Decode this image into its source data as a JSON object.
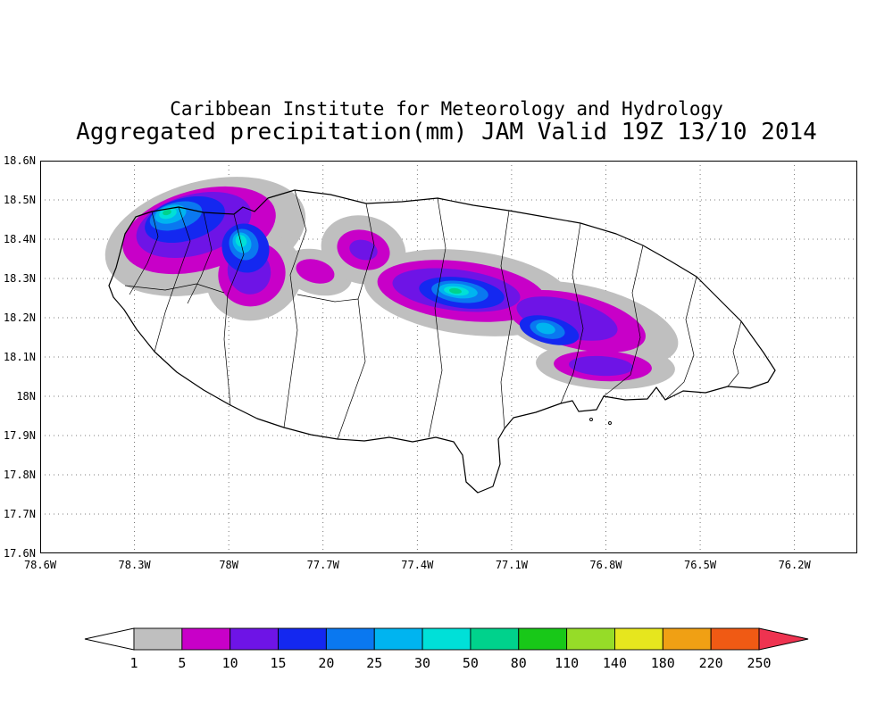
{
  "header": {
    "title_line1": "Caribbean Institute for Meteorology and Hydrology",
    "title_line2": "Aggregated precipitation(mm) JAM Valid 19Z 13/10 2014"
  },
  "axes": {
    "y_ticks": [
      "18.6N",
      "18.5N",
      "18.4N",
      "18.3N",
      "18.2N",
      "18.1N",
      "18N",
      "17.9N",
      "17.8N",
      "17.7N",
      "17.6N"
    ],
    "x_ticks": [
      "78.6W",
      "78.3W",
      "78W",
      "77.7W",
      "77.4W",
      "77.1W",
      "76.8W",
      "76.5W",
      "76.2W"
    ]
  },
  "palette": {
    "gray": "#bfbfbf",
    "magenta": "#c800c8",
    "purple": "#6e14e6",
    "blue": "#1428f0",
    "azure": "#0a78f0",
    "lightblue": "#00b4f0",
    "cyan": "#00e0d8",
    "teal": "#00d28c"
  },
  "colorbar": {
    "labels": [
      "1",
      "5",
      "10",
      "15",
      "20",
      "25",
      "30",
      "50",
      "80",
      "110",
      "140",
      "180",
      "220",
      "250"
    ],
    "segment_colors": [
      "#bfbfbf",
      "#c800c8",
      "#6e14e6",
      "#1428f0",
      "#0a78f0",
      "#00b4f0",
      "#00e0d8",
      "#00d28c",
      "#18c818",
      "#96dc28",
      "#e6e61e",
      "#f0a014",
      "#f05a14"
    ],
    "left_arrow_color": "#ffffff",
    "right_arrow_color": "#ee3350"
  },
  "chart_data": {
    "type": "heatmap",
    "subtype": "filled-contour precipitation analysis over map",
    "title": "Aggregated precipitation(mm) JAM Valid 19Z 13/10 2014",
    "institution": "Caribbean Institute for Meteorology and Hydrology",
    "region": "Jamaica (JAM)",
    "valid_time": "19Z 13/10 2014",
    "units": "mm",
    "grid": "dotted",
    "legend_position": "bottom horizontal colorbar with under/over arrows",
    "x_axis": {
      "ticks": [
        "78.6W",
        "78.3W",
        "78W",
        "77.7W",
        "77.4W",
        "77.1W",
        "76.8W",
        "76.5W",
        "76.2W"
      ],
      "range_lon": [
        -78.6,
        -76.0
      ]
    },
    "y_axis": {
      "ticks": [
        "18.6N",
        "18.5N",
        "18.4N",
        "18.3N",
        "18.2N",
        "18.1N",
        "18N",
        "17.9N",
        "17.8N",
        "17.7N",
        "17.6N"
      ],
      "range_lat": [
        17.6,
        18.6
      ]
    },
    "contour_levels_mm": [
      1,
      5,
      10,
      15,
      20,
      25,
      30,
      50,
      80,
      110,
      140,
      180,
      220,
      250
    ],
    "level_colors": [
      "#bfbfbf",
      "#c800c8",
      "#6e14e6",
      "#1428f0",
      "#0a78f0",
      "#00b4f0",
      "#00e0d8",
      "#00d28c",
      "#18c818",
      "#96dc28",
      "#e6e61e",
      "#f0a014",
      "#f05a14"
    ],
    "under_color": "#ffffff",
    "over_color": "#ee3350",
    "precip_cells": [
      {
        "name": "northwest band (Hanover/St. James)",
        "center_lon": -78.05,
        "center_lat": 18.42,
        "peak_mm": "30-50"
      },
      {
        "name": "west-central bridge cell",
        "center_lon": -77.72,
        "center_lat": 18.31,
        "peak_mm": "10-15"
      },
      {
        "name": "north-central cell",
        "center_lon": -77.57,
        "center_lat": 18.38,
        "peak_mm": "10-15"
      },
      {
        "name": "central band maximum",
        "center_lon": -77.25,
        "center_lat": 18.26,
        "peak_mm": "30-50"
      },
      {
        "name": "east-central cell",
        "center_lon": -76.98,
        "center_lat": 18.17,
        "peak_mm": "25-30"
      },
      {
        "name": "southeast isolated cell",
        "center_lon": -76.81,
        "center_lat": 18.06,
        "peak_mm": "10-15"
      }
    ]
  }
}
